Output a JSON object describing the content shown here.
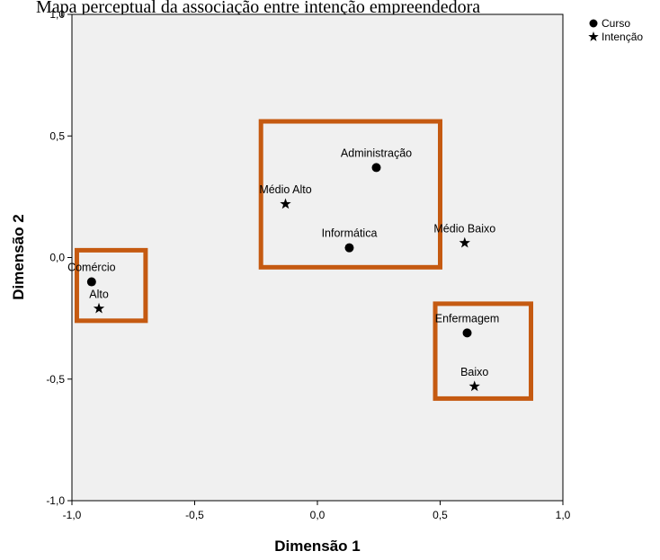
{
  "chart_data": {
    "type": "scatter",
    "title": "Mapa perceptual da associação entre intenção empreendedora",
    "xlabel": "Dimensão 1",
    "ylabel": "Dimensão 2",
    "xlim": [
      -1.0,
      1.0
    ],
    "ylim": [
      -1.0,
      1.0
    ],
    "xticks": [
      "-1,0",
      "-0,5",
      "0,0",
      "0,5",
      "1,0"
    ],
    "yticks": [
      "1,0",
      "0,5",
      "0,0",
      "-0,5",
      "-1,0"
    ],
    "grid": false,
    "plot_background": "#f0f0f0",
    "highlight_color": "#c55a11",
    "legend": {
      "placement": "top-right",
      "entries": [
        {
          "name": "Curso",
          "marker": "circle"
        },
        {
          "name": "Intenção",
          "marker": "star"
        }
      ]
    },
    "series": [
      {
        "name": "Curso",
        "marker": "circle",
        "points": [
          {
            "label": "Administração",
            "x": 0.24,
            "y": 0.37
          },
          {
            "label": "Informática",
            "x": 0.13,
            "y": 0.04
          },
          {
            "label": "Comércio",
            "x": -0.92,
            "y": -0.1
          },
          {
            "label": "Enfermagem",
            "x": 0.61,
            "y": -0.31
          }
        ]
      },
      {
        "name": "Intenção",
        "marker": "star",
        "points": [
          {
            "label": "Médio Alto",
            "x": -0.13,
            "y": 0.22
          },
          {
            "label": "Médio Baixo",
            "x": 0.6,
            "y": 0.06
          },
          {
            "label": "Alto",
            "x": -0.89,
            "y": -0.21
          },
          {
            "label": "Baixo",
            "x": 0.64,
            "y": -0.53
          }
        ]
      }
    ],
    "highlight_boxes": [
      {
        "x0": -0.98,
        "x1": -0.7,
        "y0": -0.26,
        "y1": 0.03
      },
      {
        "x0": -0.23,
        "x1": 0.5,
        "y0": -0.04,
        "y1": 0.56
      },
      {
        "x0": 0.48,
        "x1": 0.87,
        "y0": -0.58,
        "y1": -0.19
      }
    ]
  }
}
